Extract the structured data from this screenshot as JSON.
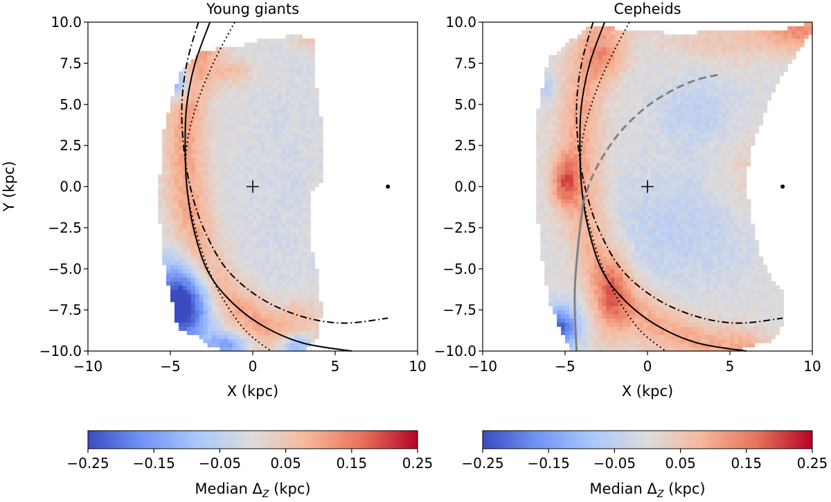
{
  "colormap": {
    "name": "coolwarm",
    "stops": [
      "#3b4cc0",
      "#6f92f3",
      "#aac7fd",
      "#dddcdc",
      "#f7b89c",
      "#e7745b",
      "#b40426"
    ]
  },
  "chart_data": [
    {
      "type": "heatmap",
      "title": "Young giants",
      "xlabel": "X (kpc)",
      "ylabel": "Y (kpc)",
      "xlim": [
        -10,
        10
      ],
      "ylim": [
        -10,
        10
      ],
      "xticks": [
        -10,
        -5,
        0,
        5,
        10
      ],
      "xtick_labels": [
        "−10",
        "−5",
        "0",
        "5",
        "10"
      ],
      "yticks": [
        10,
        7.5,
        5,
        2.5,
        0,
        -2.5,
        -5,
        -7.5,
        -10
      ],
      "ytick_labels": [
        "10.0",
        "7.5",
        "5.0",
        "2.5",
        "0.0",
        "−2.5",
        "−5.0",
        "−7.5",
        "−10.0"
      ],
      "markers": [
        {
          "name": "plus-marker",
          "symbol": "+",
          "x": 0,
          "y": 0
        },
        {
          "name": "dot-marker",
          "symbol": "dot",
          "x": 8.2,
          "y": 0
        }
      ],
      "curves": [
        {
          "name": "solid-arc",
          "style": "solid",
          "color": "#000000",
          "x": [
            -2.6,
            -3.5,
            -4.0,
            -4.1,
            -4.0,
            -3.6,
            -2.8,
            -1.5,
            0.5,
            3.0,
            6.0
          ],
          "y": [
            10.0,
            7.5,
            5.0,
            2.5,
            0.0,
            -2.5,
            -5.0,
            -6.8,
            -8.4,
            -9.5,
            -10.0
          ]
        },
        {
          "name": "dashdot-arc",
          "style": "dashdot",
          "color": "#000000",
          "x": [
            -3.3,
            -4.0,
            -4.3,
            -4.2,
            -3.8,
            -3.0,
            -1.6,
            0.5,
            3.0,
            5.5,
            8.2
          ],
          "y": [
            10.0,
            7.5,
            5.0,
            2.5,
            0.0,
            -2.5,
            -5.0,
            -6.8,
            -7.9,
            -8.3,
            -8.0
          ]
        },
        {
          "name": "dotted-arc",
          "style": "dotted",
          "color": "#000000",
          "x": [
            -1.1,
            -2.4,
            -3.4,
            -4.0,
            -4.0,
            -3.5,
            -2.7,
            -1.7,
            -0.4,
            1.1
          ],
          "y": [
            10.0,
            7.5,
            5.0,
            2.5,
            0.0,
            -2.5,
            -5.0,
            -7.0,
            -8.8,
            -10.0
          ]
        }
      ],
      "map_bounds": {
        "x": [
          -4.5,
          -5.3,
          -5.6,
          -5.7,
          -5.4,
          -5.0,
          -4.7,
          -4.6,
          -4.1,
          -3.4,
          -2.6,
          -1.3,
          0.2,
          1.5,
          3.0,
          3.9,
          4.2,
          3.9,
          3.5,
          3.5,
          4.3,
          4.3,
          3.9,
          3.8,
          3.8,
          2.5,
          0.4,
          -1.0,
          -3.0,
          -4.5
        ],
        "y": [
          6.8,
          4.0,
          1.5,
          -1.5,
          -4.5,
          -6.5,
          -7.5,
          -8.5,
          -8.8,
          -9.1,
          -9.8,
          -10.0,
          -10.0,
          -10.0,
          -10.0,
          -9.2,
          -7.5,
          -5.0,
          -3.5,
          -0.5,
          0.5,
          3.5,
          5.5,
          7.5,
          9.0,
          9.2,
          8.9,
          8.5,
          8.3,
          6.8
        ]
      },
      "colorbar": {
        "label": "Median Δ",
        "label_sub": "Z",
        "label_unit": " (kpc)",
        "vmin": -0.25,
        "vmax": 0.25,
        "ticks": [
          -0.25,
          -0.15,
          -0.05,
          0.05,
          0.15,
          0.25
        ],
        "tick_labels": [
          "−0.25",
          "−0.15",
          "−0.05",
          "0.05",
          "0.15",
          "0.25"
        ]
      }
    },
    {
      "type": "heatmap",
      "title": "Cepheids",
      "xlabel": "X (kpc)",
      "ylabel": "",
      "xlim": [
        -10,
        10
      ],
      "ylim": [
        -10,
        10
      ],
      "xticks": [
        -10,
        -5,
        0,
        5,
        10
      ],
      "xtick_labels": [
        "−10",
        "−5",
        "0",
        "5",
        "10"
      ],
      "yticks": [
        10,
        7.5,
        5,
        2.5,
        0,
        -2.5,
        -5,
        -7.5,
        -10
      ],
      "ytick_labels": [
        "10.0",
        "7.5",
        "5.0",
        "2.5",
        "0.0",
        "−2.5",
        "−5.0",
        "−7.5",
        "−10.0"
      ],
      "markers": [
        {
          "name": "plus-marker",
          "symbol": "+",
          "x": 0,
          "y": 0
        },
        {
          "name": "dot-marker",
          "symbol": "dot",
          "x": 8.2,
          "y": 0
        }
      ],
      "curves": [
        {
          "name": "solid-arc",
          "style": "solid",
          "color": "#000000",
          "x": [
            -2.6,
            -3.5,
            -4.0,
            -4.1,
            -4.0,
            -3.6,
            -2.8,
            -1.5,
            0.5,
            3.0,
            6.0
          ],
          "y": [
            10.0,
            7.5,
            5.0,
            2.5,
            0.0,
            -2.5,
            -5.0,
            -6.8,
            -8.4,
            -9.5,
            -10.0
          ]
        },
        {
          "name": "dashdot-arc",
          "style": "dashdot",
          "color": "#000000",
          "x": [
            -3.3,
            -4.0,
            -4.3,
            -4.2,
            -3.8,
            -3.0,
            -1.6,
            0.5,
            3.0,
            5.5,
            8.2
          ],
          "y": [
            10.0,
            7.5,
            5.0,
            2.5,
            0.0,
            -2.5,
            -5.0,
            -6.8,
            -7.9,
            -8.3,
            -8.0
          ]
        },
        {
          "name": "dotted-arc",
          "style": "dotted",
          "color": "#000000",
          "x": [
            -1.1,
            -2.4,
            -3.4,
            -4.0,
            -4.0,
            -3.5,
            -2.7,
            -1.7,
            -0.4,
            1.1
          ],
          "y": [
            10.0,
            7.5,
            5.0,
            2.5,
            0.0,
            -2.5,
            -5.0,
            -7.0,
            -8.8,
            -10.0
          ]
        },
        {
          "name": "gray-dashed-arc",
          "style": "dashed",
          "color": "#808080",
          "x": [
            -3.9,
            -3.4,
            -2.6,
            -1.5,
            0.0,
            1.6,
            3.0,
            4.3
          ],
          "y": [
            -1.0,
            0.5,
            2.0,
            3.5,
            4.9,
            5.9,
            6.5,
            6.8
          ]
        },
        {
          "name": "gray-solid-arc",
          "style": "solid",
          "color": "#808080",
          "x": [
            -3.9,
            -4.2,
            -4.4,
            -4.4,
            -4.3
          ],
          "y": [
            -1.0,
            -3.5,
            -6.0,
            -8.0,
            -10.0
          ]
        }
      ],
      "map_bounds": {
        "x": [
          -4.5,
          -6.0,
          -6.6,
          -6.8,
          -6.8,
          -6.6,
          -6.3,
          -5.8,
          -4.9,
          -4.6,
          -3.5,
          -1.5,
          0.5,
          2.0,
          3.5,
          5.2,
          7.8,
          8.3,
          8.2,
          7.5,
          6.8,
          6.6,
          6.2,
          6.0,
          6.4,
          7.2,
          8.2,
          9.2,
          10.0,
          10.0,
          8.0,
          5.0,
          2.0,
          -1.0,
          -3.5,
          -4.5
        ],
        "y": [
          9.0,
          7.8,
          5.0,
          2.5,
          0.0,
          -2.5,
          -5.0,
          -7.5,
          -9.4,
          -10.0,
          -10.0,
          -10.0,
          -10.0,
          -10.0,
          -10.0,
          -10.0,
          -9.3,
          -8.0,
          -6.2,
          -5.5,
          -4.0,
          -3.0,
          -1.5,
          0.5,
          2.5,
          4.8,
          6.8,
          8.3,
          9.5,
          10.0,
          9.5,
          9.5,
          9.3,
          9.5,
          9.8,
          9.0
        ]
      },
      "colorbar": {
        "label": "Median Δ",
        "label_sub": "Z",
        "label_unit": " (kpc)",
        "vmin": -0.25,
        "vmax": 0.25,
        "ticks": [
          -0.25,
          -0.15,
          -0.05,
          0.05,
          0.15,
          0.25
        ],
        "tick_labels": [
          "−0.25",
          "−0.15",
          "−0.05",
          "0.05",
          "0.15",
          "0.25"
        ]
      }
    }
  ]
}
